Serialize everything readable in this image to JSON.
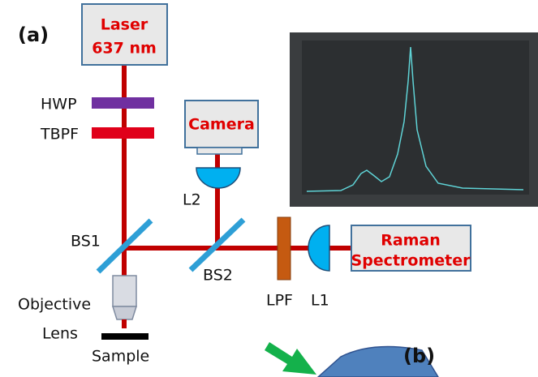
{
  "panel_a": {
    "label": "(a)",
    "laser": {
      "line1": "Laser",
      "line2": "637 nm"
    },
    "hwp": "HWP",
    "tbpf": "TBPF",
    "camera": "Camera",
    "l2": "L2",
    "bs1": "BS1",
    "bs2": "BS2",
    "lpf": "LPF",
    "l1": "L1",
    "spectrometer": {
      "line1": "Raman",
      "line2": "Spectrometer"
    },
    "objective": {
      "line1": "Objective",
      "line2": "Lens"
    },
    "sample": "Sample"
  },
  "panel_b": {
    "label": "(b)"
  }
}
